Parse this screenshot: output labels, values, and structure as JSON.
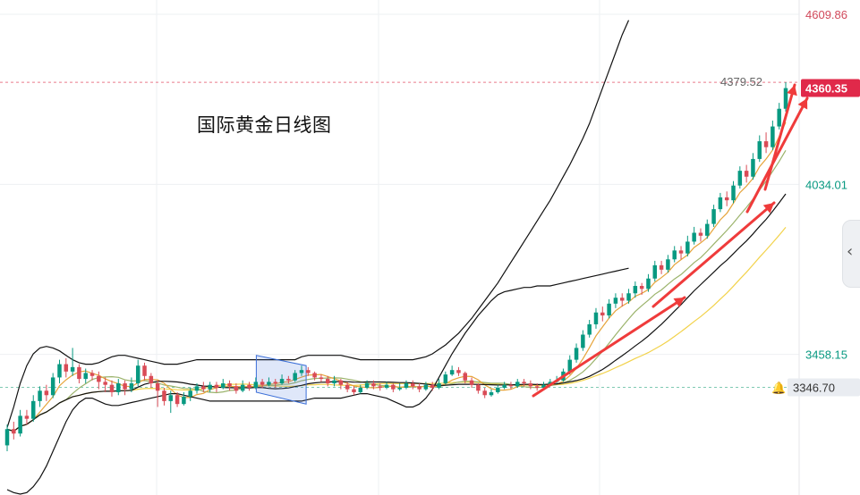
{
  "title": "国际黄金日线图",
  "price_axis": {
    "top_label": "4609.86",
    "ref_upper": "4034.01",
    "ref_lower": "3458.15",
    "prev_high_label": "4379.52",
    "last_price": "4360.35",
    "alert_price": "3346.70",
    "colors": {
      "top": "#d1495b",
      "ref": "#089981",
      "last_bg": "#e0294a",
      "alert_bg": "#e9ecf1",
      "alert_text": "#333333"
    }
  },
  "panel_toggle": {
    "icon": "chevron-left-icon",
    "glyph": "‹"
  },
  "colors": {
    "up": "#089981",
    "down": "#d94b56",
    "bb": "#111111",
    "ma_fast": "#e6a43a",
    "ma_mid": "#9bb36b",
    "ma_slow": "#f2d24a",
    "arrow": "#ef3b3b",
    "channel": "#3b6fd8"
  },
  "chart_data": {
    "type": "candlestick",
    "title": "国际黄金日线图",
    "ylim": [
      3000,
      4610
    ],
    "y_ticks": [
      4609.86,
      4034.01,
      3458.15
    ],
    "last": 4360.35,
    "prev_high": 4379.52,
    "alert": 3346.7,
    "candles": [
      [
        3150,
        3205,
        3130,
        3220
      ],
      [
        3205,
        3190,
        3170,
        3230
      ],
      [
        3190,
        3250,
        3180,
        3270
      ],
      [
        3250,
        3240,
        3220,
        3270
      ],
      [
        3240,
        3300,
        3230,
        3320
      ],
      [
        3300,
        3335,
        3280,
        3350
      ],
      [
        3335,
        3320,
        3300,
        3355
      ],
      [
        3320,
        3380,
        3310,
        3395
      ],
      [
        3380,
        3425,
        3360,
        3440
      ],
      [
        3425,
        3400,
        3380,
        3445
      ],
      [
        3400,
        3415,
        3385,
        3480
      ],
      [
        3415,
        3375,
        3360,
        3425
      ],
      [
        3375,
        3395,
        3360,
        3410
      ],
      [
        3395,
        3385,
        3370,
        3405
      ],
      [
        3385,
        3365,
        3340,
        3400
      ],
      [
        3365,
        3355,
        3330,
        3380
      ],
      [
        3355,
        3330,
        3315,
        3370
      ],
      [
        3330,
        3360,
        3320,
        3375
      ],
      [
        3360,
        3340,
        3320,
        3370
      ],
      [
        3340,
        3360,
        3330,
        3380
      ],
      [
        3360,
        3420,
        3350,
        3440
      ],
      [
        3420,
        3385,
        3370,
        3430
      ],
      [
        3385,
        3360,
        3345,
        3395
      ],
      [
        3360,
        3335,
        3280,
        3370
      ],
      [
        3335,
        3300,
        3285,
        3345
      ],
      [
        3300,
        3320,
        3260,
        3335
      ],
      [
        3320,
        3290,
        3280,
        3330
      ],
      [
        3290,
        3315,
        3285,
        3330
      ],
      [
        3315,
        3335,
        3300,
        3345
      ],
      [
        3335,
        3350,
        3325,
        3360
      ],
      [
        3350,
        3340,
        3330,
        3365
      ],
      [
        3340,
        3355,
        3330,
        3365
      ],
      [
        3355,
        3345,
        3330,
        3365
      ],
      [
        3345,
        3360,
        3340,
        3375
      ],
      [
        3360,
        3350,
        3335,
        3370
      ],
      [
        3350,
        3335,
        3325,
        3360
      ],
      [
        3335,
        3355,
        3330,
        3370
      ],
      [
        3355,
        3345,
        3335,
        3365
      ],
      [
        3345,
        3365,
        3340,
        3380
      ],
      [
        3365,
        3355,
        3345,
        3375
      ],
      [
        3355,
        3365,
        3350,
        3380
      ],
      [
        3365,
        3360,
        3345,
        3375
      ],
      [
        3360,
        3375,
        3355,
        3390
      ],
      [
        3375,
        3370,
        3360,
        3385
      ],
      [
        3370,
        3395,
        3365,
        3405
      ],
      [
        3395,
        3405,
        3385,
        3420
      ],
      [
        3405,
        3395,
        3385,
        3415
      ],
      [
        3395,
        3380,
        3370,
        3400
      ],
      [
        3380,
        3375,
        3365,
        3390
      ],
      [
        3375,
        3360,
        3350,
        3385
      ],
      [
        3360,
        3370,
        3350,
        3385
      ],
      [
        3370,
        3355,
        3340,
        3375
      ],
      [
        3355,
        3340,
        3330,
        3365
      ],
      [
        3340,
        3330,
        3320,
        3350
      ],
      [
        3330,
        3345,
        3325,
        3355
      ],
      [
        3345,
        3360,
        3340,
        3370
      ],
      [
        3360,
        3350,
        3340,
        3370
      ],
      [
        3350,
        3345,
        3335,
        3360
      ],
      [
        3345,
        3355,
        3340,
        3365
      ],
      [
        3355,
        3340,
        3330,
        3360
      ],
      [
        3340,
        3345,
        3335,
        3360
      ],
      [
        3345,
        3360,
        3340,
        3370
      ],
      [
        3360,
        3350,
        3340,
        3370
      ],
      [
        3350,
        3340,
        3330,
        3360
      ],
      [
        3340,
        3355,
        3335,
        3365
      ],
      [
        3355,
        3345,
        3335,
        3365
      ],
      [
        3345,
        3360,
        3340,
        3375
      ],
      [
        3360,
        3390,
        3355,
        3400
      ],
      [
        3390,
        3405,
        3385,
        3420
      ],
      [
        3405,
        3395,
        3385,
        3415
      ],
      [
        3395,
        3370,
        3360,
        3400
      ],
      [
        3370,
        3355,
        3345,
        3380
      ],
      [
        3355,
        3335,
        3325,
        3360
      ],
      [
        3335,
        3320,
        3310,
        3345
      ],
      [
        3320,
        3330,
        3315,
        3340
      ],
      [
        3330,
        3345,
        3325,
        3355
      ],
      [
        3345,
        3355,
        3340,
        3365
      ],
      [
        3355,
        3350,
        3340,
        3365
      ],
      [
        3350,
        3365,
        3345,
        3375
      ],
      [
        3365,
        3360,
        3350,
        3375
      ],
      [
        3360,
        3350,
        3340,
        3370
      ],
      [
        3350,
        3345,
        3335,
        3360
      ],
      [
        3345,
        3355,
        3340,
        3365
      ],
      [
        3355,
        3365,
        3350,
        3375
      ],
      [
        3365,
        3370,
        3360,
        3385
      ],
      [
        3370,
        3400,
        3365,
        3410
      ],
      [
        3400,
        3440,
        3390,
        3455
      ],
      [
        3440,
        3480,
        3430,
        3495
      ],
      [
        3480,
        3525,
        3470,
        3540
      ],
      [
        3525,
        3560,
        3515,
        3575
      ],
      [
        3560,
        3600,
        3545,
        3615
      ],
      [
        3600,
        3590,
        3570,
        3620
      ],
      [
        3590,
        3630,
        3580,
        3645
      ],
      [
        3630,
        3650,
        3615,
        3665
      ],
      [
        3650,
        3640,
        3620,
        3665
      ],
      [
        3640,
        3665,
        3630,
        3680
      ],
      [
        3665,
        3690,
        3650,
        3705
      ],
      [
        3690,
        3680,
        3660,
        3700
      ],
      [
        3680,
        3715,
        3670,
        3730
      ],
      [
        3715,
        3760,
        3705,
        3775
      ],
      [
        3760,
        3745,
        3730,
        3775
      ],
      [
        3745,
        3780,
        3735,
        3795
      ],
      [
        3780,
        3810,
        3770,
        3825
      ],
      [
        3810,
        3800,
        3780,
        3825
      ],
      [
        3800,
        3840,
        3790,
        3860
      ],
      [
        3840,
        3870,
        3830,
        3890
      ],
      [
        3870,
        3860,
        3840,
        3885
      ],
      [
        3860,
        3900,
        3850,
        3915
      ],
      [
        3900,
        3950,
        3890,
        3965
      ],
      [
        3950,
        3990,
        3940,
        4005
      ],
      [
        3990,
        3980,
        3960,
        4010
      ],
      [
        3980,
        4030,
        3970,
        4045
      ],
      [
        4030,
        4080,
        4020,
        4095
      ],
      [
        4080,
        4060,
        4040,
        4100
      ],
      [
        4060,
        4120,
        4050,
        4140
      ],
      [
        4120,
        4180,
        4110,
        4200
      ],
      [
        4180,
        4160,
        4140,
        4210
      ],
      [
        4160,
        4230,
        4150,
        4250
      ],
      [
        4230,
        4290,
        4220,
        4310
      ],
      [
        4290,
        4360,
        4280,
        4380
      ]
    ],
    "bollinger": {
      "upper": [
        3210,
        3280,
        3360,
        3420,
        3460,
        3480,
        3485,
        3480,
        3470,
        3455,
        3440,
        3430,
        3425,
        3425,
        3430,
        3440,
        3450,
        3455,
        3455,
        3450,
        3445,
        3440,
        3435,
        3430,
        3425,
        3425,
        3425,
        3430,
        3435,
        3440,
        3440,
        3440,
        3440,
        3440,
        3440,
        3440,
        3440,
        3440,
        3440,
        3440,
        3440,
        3440,
        3440,
        3440,
        3440,
        3450,
        3455,
        3455,
        3455,
        3455,
        3455,
        3455,
        3450,
        3445,
        3440,
        3440,
        3440,
        3440,
        3440,
        3440,
        3440,
        3440,
        3440,
        3445,
        3450,
        3460,
        3475,
        3490,
        3510,
        3530,
        3555,
        3580,
        3610,
        3640,
        3670,
        3700,
        3735,
        3770,
        3805,
        3840,
        3875,
        3910,
        3945,
        3980,
        4020,
        4060,
        4100,
        4145,
        4190,
        4240,
        4300,
        4360,
        4420,
        4480,
        4540,
        4590
      ],
      "lower": [
        3000,
        2990,
        2985,
        2990,
        3010,
        3040,
        3080,
        3130,
        3180,
        3230,
        3270,
        3295,
        3310,
        3310,
        3300,
        3290,
        3285,
        3285,
        3290,
        3295,
        3300,
        3305,
        3310,
        3315,
        3320,
        3325,
        3325,
        3320,
        3315,
        3310,
        3305,
        3300,
        3300,
        3300,
        3300,
        3300,
        3300,
        3300,
        3300,
        3300,
        3300,
        3300,
        3300,
        3300,
        3300,
        3300,
        3305,
        3310,
        3310,
        3310,
        3310,
        3310,
        3315,
        3320,
        3325,
        3325,
        3320,
        3315,
        3310,
        3300,
        3290,
        3280,
        3280,
        3290,
        3310,
        3340,
        3380,
        3420,
        3460,
        3495,
        3530,
        3560,
        3590,
        3615,
        3640,
        3660,
        3670,
        3675,
        3680,
        3685,
        3685,
        3690,
        3690,
        3690,
        3695,
        3700,
        3705,
        3710,
        3715,
        3720,
        3725,
        3730,
        3735,
        3740,
        3745,
        3750
      ]
    }
  }
}
